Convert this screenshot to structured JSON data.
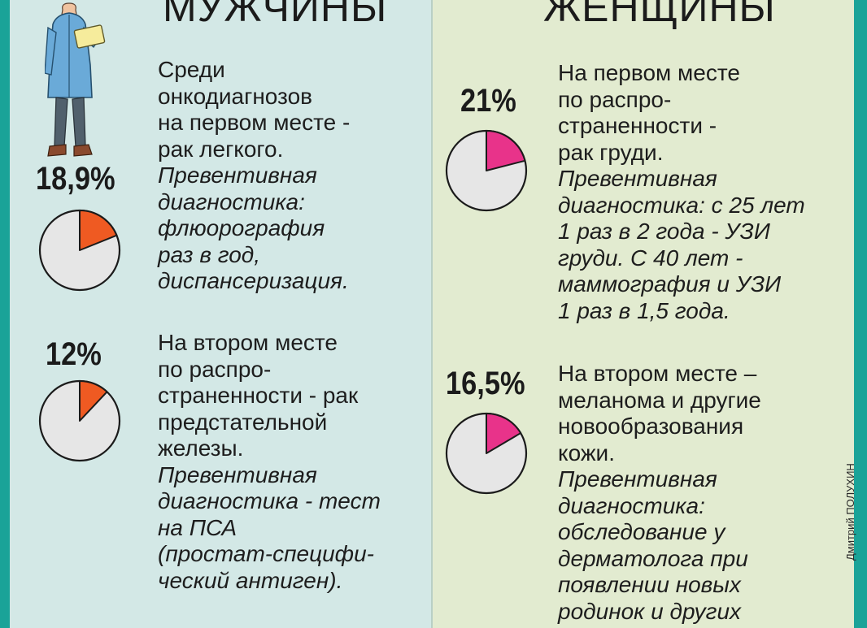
{
  "men": {
    "title": "МУЖЧИНЫ",
    "items": [
      {
        "percent_label": "18,9%",
        "lines": [
          {
            "t": "Среди",
            "i": false
          },
          {
            "t": "онкодиагнозов",
            "i": false
          },
          {
            "t": "на первом месте -",
            "i": false
          },
          {
            "t": "рак легкого.",
            "i": false
          },
          {
            "t": "Превентивная",
            "i": true
          },
          {
            "t": "диагностика:",
            "i": true
          },
          {
            "t": "флюорография",
            "i": true
          },
          {
            "t": "раз в год,",
            "i": true
          },
          {
            "t": "диспансеризация.",
            "i": true
          }
        ]
      },
      {
        "percent_label": "12%",
        "lines": [
          {
            "t": "На втором месте",
            "i": false
          },
          {
            "t": "по распро-",
            "i": false
          },
          {
            "t": "страненности - рак",
            "i": false
          },
          {
            "t": "предстательной",
            "i": false
          },
          {
            "t": "железы.",
            "i": false
          },
          {
            "t": "Превентивная",
            "i": true
          },
          {
            "t": "диагностика - тест",
            "i": true
          },
          {
            "t": "на ПСА",
            "i": true
          },
          {
            "t": "(простат-специфи-",
            "i": true
          },
          {
            "t": "ческий антиген).",
            "i": true
          }
        ]
      }
    ]
  },
  "women": {
    "title": "ЖЕНЩИНЫ",
    "items": [
      {
        "percent_label": "21%",
        "lines": [
          {
            "t": "На первом месте",
            "i": false
          },
          {
            "t": "по распро-",
            "i": false
          },
          {
            "t": "страненности -",
            "i": false
          },
          {
            "t": "рак груди.",
            "i": false
          },
          {
            "t": "Превентивная",
            "i": true
          },
          {
            "t": "диагностика: с 25 лет",
            "i": true
          },
          {
            "t": "1 раз в 2 года - УЗИ",
            "i": true
          },
          {
            "t": "груди. С 40 лет -",
            "i": true
          },
          {
            "t": "маммография и УЗИ",
            "i": true
          },
          {
            "t": "1 раз в 1,5 года.",
            "i": true
          }
        ]
      },
      {
        "percent_label": "16,5%",
        "lines": [
          {
            "t": "На втором месте –",
            "i": false
          },
          {
            "t": "меланома и другие",
            "i": false
          },
          {
            "t": "новообразования",
            "i": false
          },
          {
            "t": "кожи.",
            "i": false
          },
          {
            "t": "Превентивная",
            "i": true
          },
          {
            "t": "диагностика:",
            "i": true
          },
          {
            "t": "обследование у",
            "i": true
          },
          {
            "t": "дерматолога при",
            "i": true
          },
          {
            "t": "появлении новых",
            "i": true
          },
          {
            "t": "родинок и других",
            "i": true
          }
        ]
      }
    ]
  },
  "credit": "Дмитрий ПОЛУХИН",
  "chart_data": [
    {
      "type": "pie",
      "title": "",
      "group": "МУЖЧИНЫ",
      "value_percent": 18.9,
      "label": "18,9%",
      "slice_color": "#ef5a22",
      "rest_color": "#e6e6e6"
    },
    {
      "type": "pie",
      "title": "",
      "group": "МУЖЧИНЫ",
      "value_percent": 12,
      "label": "12%",
      "slice_color": "#ef5a22",
      "rest_color": "#e6e6e6"
    },
    {
      "type": "pie",
      "title": "",
      "group": "ЖЕНЩИНЫ",
      "value_percent": 21,
      "label": "21%",
      "slice_color": "#e8338a",
      "rest_color": "#e6e6e6"
    },
    {
      "type": "pie",
      "title": "",
      "group": "ЖЕНЩИНЫ",
      "value_percent": 16.5,
      "label": "16,5%",
      "slice_color": "#e8338a",
      "rest_color": "#e6e6e6"
    }
  ],
  "icons": {
    "doctor": "doctor-figure-icon"
  }
}
